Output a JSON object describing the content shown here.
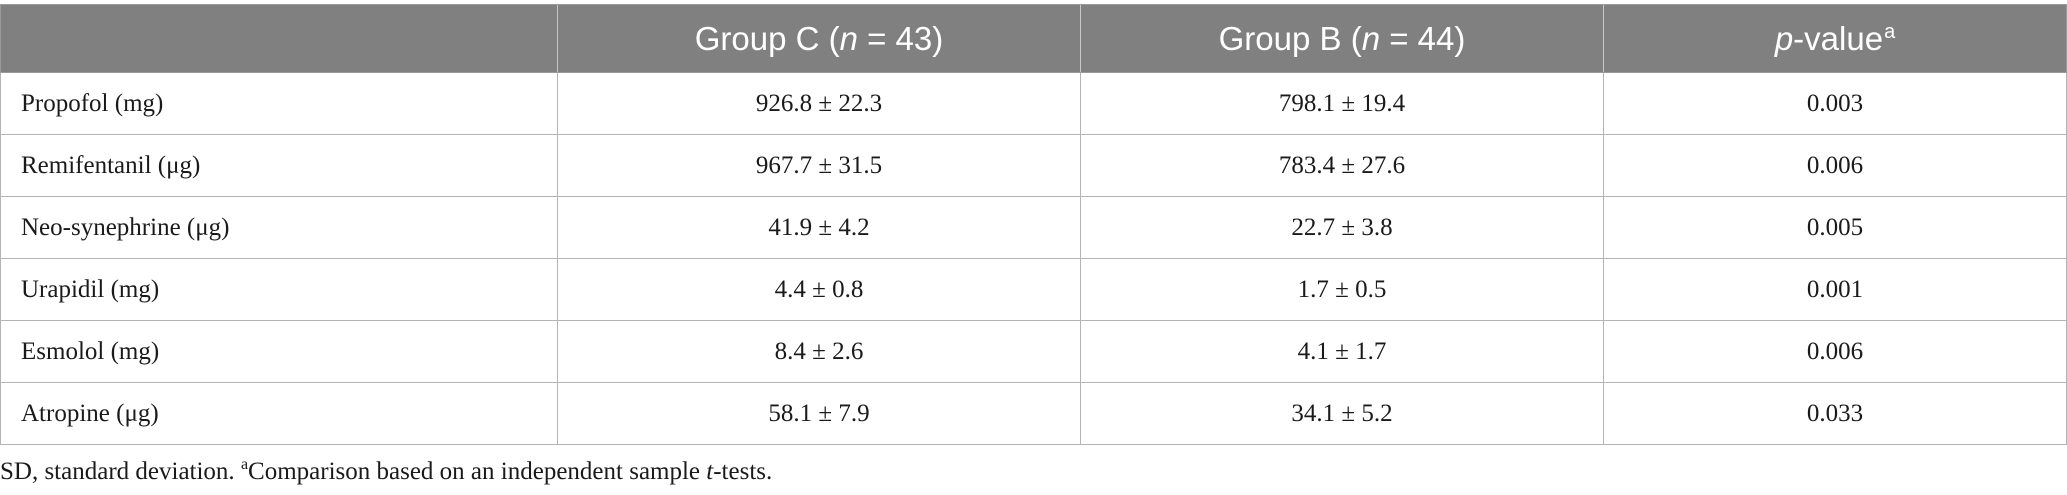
{
  "table": {
    "headers": [
      {
        "label": "",
        "italic": "",
        "suffix": "",
        "sup": ""
      },
      {
        "label": "Group C (",
        "italic": "n",
        "suffix": " = 43)",
        "sup": ""
      },
      {
        "label": "Group B (",
        "italic": "n",
        "suffix": " = 44)",
        "sup": ""
      },
      {
        "label": "",
        "italic": "p",
        "suffix": "-value",
        "sup": "a"
      }
    ],
    "rows": [
      {
        "drug": "Propofol (mg)",
        "group_c": "926.8 ± 22.3",
        "group_b": "798.1 ± 19.4",
        "p_value": "0.003"
      },
      {
        "drug": "Remifentanil (μg)",
        "group_c": "967.7 ± 31.5",
        "group_b": "783.4 ± 27.6",
        "p_value": "0.006"
      },
      {
        "drug": "Neo-synephrine (μg)",
        "group_c": "41.9 ± 4.2",
        "group_b": "22.7 ± 3.8",
        "p_value": "0.005"
      },
      {
        "drug": "Urapidil (mg)",
        "group_c": "4.4 ± 0.8",
        "group_b": "1.7 ± 0.5",
        "p_value": "0.001"
      },
      {
        "drug": "Esmolol (mg)",
        "group_c": "8.4 ± 2.6",
        "group_b": "4.1 ± 1.7",
        "p_value": "0.006"
      },
      {
        "drug": "Atropine (μg)",
        "group_c": "58.1 ± 7.9",
        "group_b": "34.1 ± 5.2",
        "p_value": "0.033"
      }
    ]
  },
  "footnote": {
    "prefix": "SD, standard deviation. ",
    "sup": "a",
    "text": "Comparison based on an independent sample ",
    "italic": "t",
    "suffix": "-tests."
  },
  "colors": {
    "header_background": "#808080",
    "header_text": "#ffffff",
    "grid_lines": "#b4b4b4"
  }
}
